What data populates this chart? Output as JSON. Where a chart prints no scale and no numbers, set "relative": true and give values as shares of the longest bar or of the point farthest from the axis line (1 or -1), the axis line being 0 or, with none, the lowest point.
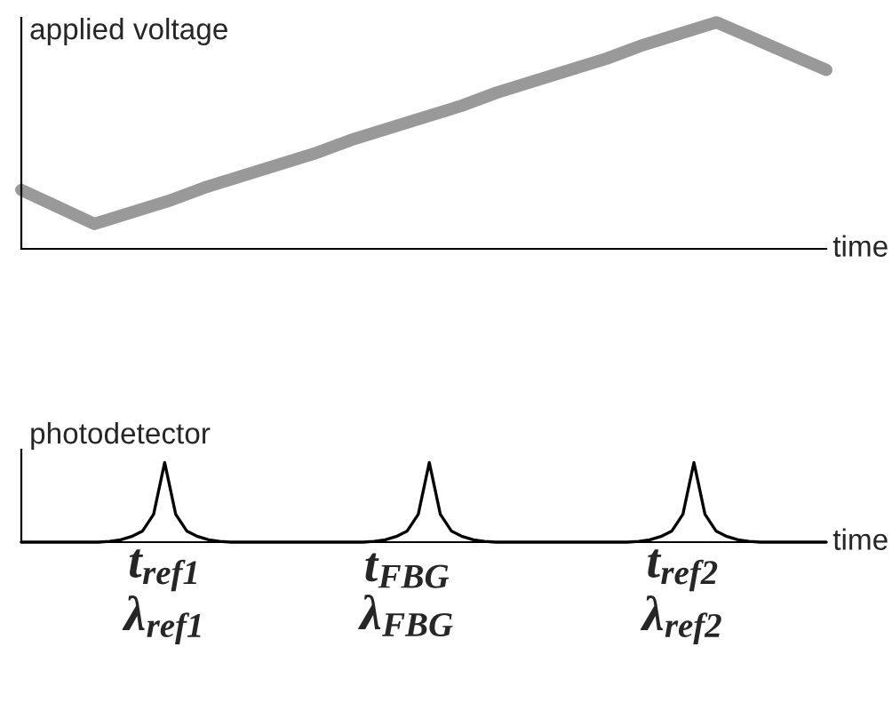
{
  "chart_data": [
    {
      "type": "line",
      "relative": true,
      "ylabel": "applied voltage",
      "xlabel": "time",
      "tick_labels": false,
      "grid": false,
      "legend": false,
      "categories": [
        null,
        null,
        null,
        null,
        null,
        null,
        null,
        null,
        null,
        null,
        null,
        null,
        null,
        null,
        null,
        null,
        null,
        null,
        null,
        null,
        null,
        null,
        null
      ],
      "series": [
        {
          "color": "#999999",
          "values": [
            0.26,
            0.185,
            0.11,
            0.16,
            0.21,
            0.27,
            0.32,
            0.37,
            0.42,
            0.48,
            0.53,
            0.58,
            0.63,
            0.69,
            0.74,
            0.79,
            0.84,
            0.9,
            0.95,
            1,
            0.93,
            0.86,
            0.79
          ]
        }
      ]
    },
    {
      "type": "line",
      "relative": true,
      "ylabel": "photodetector",
      "xlabel": "time",
      "tick_labels": "x",
      "grid": false,
      "legend": false,
      "categories": [
        null,
        null,
        null,
        null,
        null,
        null,
        null,
        null,
        null,
        null,
        null,
        null,
        null,
        "t$_{ref1}$\nλ$_{ref1}$",
        null,
        null,
        null,
        null,
        null,
        null,
        null,
        null,
        null,
        null,
        null,
        null,
        null,
        null,
        null,
        null,
        null,
        null,
        null,
        null,
        null,
        "t$_{FBG}$\nλ$_{FBG}$",
        null,
        null,
        null,
        null,
        null,
        null,
        null,
        null,
        null,
        null,
        null,
        null,
        null,
        null,
        null,
        null,
        null,
        null,
        null,
        null,
        null,
        null,
        null,
        null,
        "t$_{ref2}$\nλ$_{ref2}$",
        null,
        null,
        null,
        null,
        null,
        null,
        null,
        null,
        null,
        null,
        null,
        null,
        null
      ],
      "series": [
        {
          "color": "#000000",
          "values": [
            0,
            0,
            0,
            0,
            0,
            0,
            0,
            0,
            0.01,
            0.03,
            0.07,
            0.14,
            0.35,
            1,
            0.35,
            0.14,
            0.07,
            0.03,
            0.01,
            0,
            0,
            0,
            0,
            0,
            0,
            0,
            0,
            0,
            0,
            0,
            0,
            0,
            0.01,
            0.03,
            0.07,
            0.14,
            0.35,
            1,
            0.35,
            0.14,
            0.07,
            0.03,
            0.01,
            0,
            0,
            0,
            0,
            0,
            0,
            0,
            0,
            0,
            0,
            0,
            0,
            0,
            0.01,
            0.03,
            0.07,
            0.14,
            0.35,
            1,
            0.35,
            0.14,
            0.07,
            0.03,
            0.01,
            0,
            0,
            0,
            0,
            0,
            0,
            0
          ]
        }
      ]
    }
  ]
}
